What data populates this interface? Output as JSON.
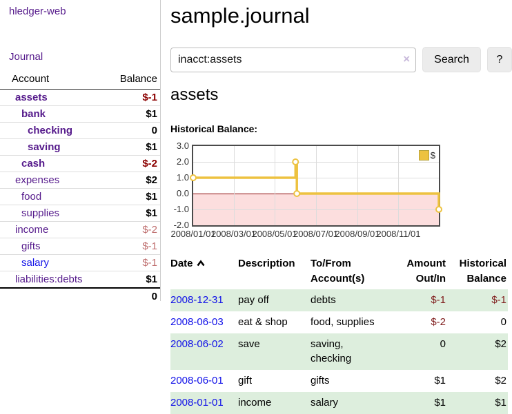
{
  "colors": {
    "link_purple": "#551a8b",
    "link_blue": "#1414e8",
    "negative_bold_red": "#8b0000",
    "negative_muted_red": "#bf6f6f",
    "row_stripe_green": "#ddeedd",
    "chart_line_gold": "#edc240",
    "chart_negative_region_pink": "#fcdede",
    "chart_zero_line_red": "#8b0000"
  },
  "sidebar": {
    "brand": "hledger-web",
    "journal_link": "Journal",
    "accounts": {
      "header_account": "Account",
      "header_balance": "Balance",
      "rows": [
        {
          "name": "assets",
          "indent": 1,
          "bold": true,
          "balance": "$-1",
          "balance_style": "neg-bold"
        },
        {
          "name": "bank",
          "indent": 2,
          "bold": true,
          "balance": "$1",
          "balance_style": "pos"
        },
        {
          "name": "checking",
          "indent": 3,
          "bold": true,
          "balance": "0",
          "balance_style": "pos"
        },
        {
          "name": "saving",
          "indent": 3,
          "bold": true,
          "balance": "$1",
          "balance_style": "pos"
        },
        {
          "name": "cash",
          "indent": 2,
          "bold": true,
          "balance": "$-2",
          "balance_style": "neg-bold"
        },
        {
          "name": "expenses",
          "indent": 1,
          "bold": false,
          "balance": "$2",
          "balance_style": "pos"
        },
        {
          "name": "food",
          "indent": 2,
          "bold": false,
          "balance": "$1",
          "balance_style": "pos"
        },
        {
          "name": "supplies",
          "indent": 2,
          "bold": false,
          "balance": "$1",
          "balance_style": "pos"
        },
        {
          "name": "income",
          "indent": 1,
          "bold": false,
          "balance": "$-2",
          "balance_style": "neg-muted"
        },
        {
          "name": "gifts",
          "indent": 2,
          "bold": false,
          "balance": "$-1",
          "balance_style": "neg-muted"
        },
        {
          "name": "salary",
          "indent": 2,
          "bold": false,
          "link_color": "blue",
          "balance": "$-1",
          "balance_style": "neg-muted"
        },
        {
          "name": "liabilities:debts",
          "indent": 1,
          "bold": false,
          "balance": "$1",
          "balance_style": "pos"
        }
      ],
      "total": "0"
    }
  },
  "main": {
    "title": "sample.journal",
    "search": {
      "value": "inacct:assets",
      "clear_icon": "×",
      "search_button": "Search",
      "help_button": "?"
    },
    "account_heading": "assets",
    "chart_label": "Historical Balance:"
  },
  "chart_data": {
    "type": "line",
    "step": true,
    "title": "Historical Balance:",
    "legend": [
      {
        "label": "$",
        "color": "#edc240"
      }
    ],
    "x_range": [
      "2008-01-01",
      "2008-12-31"
    ],
    "x_ticks": [
      {
        "label": "2008/01/01",
        "date": "2008-01-01"
      },
      {
        "label": "2008/03/01",
        "date": "2008-03-01"
      },
      {
        "label": "2008/05/01",
        "date": "2008-05-01"
      },
      {
        "label": "2008/07/01",
        "date": "2008-07-01"
      },
      {
        "label": "2008/09/01",
        "date": "2008-09-01"
      },
      {
        "label": "2008/11/01",
        "date": "2008-11-01"
      }
    ],
    "y_ticks": [
      3.0,
      2.0,
      1.0,
      0.0,
      -1.0,
      -2.0
    ],
    "ylim": [
      -2,
      3
    ],
    "grid": true,
    "legend_position": "top-right",
    "points": [
      {
        "date": "2008-01-01",
        "value": 1
      },
      {
        "date": "2008-06-01",
        "value": 2
      },
      {
        "date": "2008-06-03",
        "value": 0
      },
      {
        "date": "2008-12-31",
        "value": -1
      }
    ]
  },
  "register_table": {
    "columns": [
      {
        "label": "Date",
        "align": "left",
        "sorted": "asc"
      },
      {
        "label": "Description",
        "align": "left"
      },
      {
        "label": "To/From Account(s)",
        "align": "left"
      },
      {
        "label": "Amount Out/In",
        "align": "right"
      },
      {
        "label": "Historical Balance",
        "align": "right"
      }
    ],
    "rows": [
      {
        "date": "2008-12-31",
        "description": "pay off",
        "accounts": "debts",
        "amount": "$-1",
        "amount_neg": true,
        "balance": "$-1",
        "balance_neg": true
      },
      {
        "date": "2008-06-03",
        "description": "eat & shop",
        "accounts": "food, supplies",
        "amount": "$-2",
        "amount_neg": true,
        "balance": "0",
        "balance_neg": false
      },
      {
        "date": "2008-06-02",
        "description": "save",
        "accounts": "saving, checking",
        "amount": "0",
        "amount_neg": false,
        "balance": "$2",
        "balance_neg": false
      },
      {
        "date": "2008-06-01",
        "description": "gift",
        "accounts": "gifts",
        "amount": "$1",
        "amount_neg": false,
        "balance": "$2",
        "balance_neg": false
      },
      {
        "date": "2008-01-01",
        "description": "income",
        "accounts": "salary",
        "amount": "$1",
        "amount_neg": false,
        "balance": "$1",
        "balance_neg": false
      }
    ]
  }
}
